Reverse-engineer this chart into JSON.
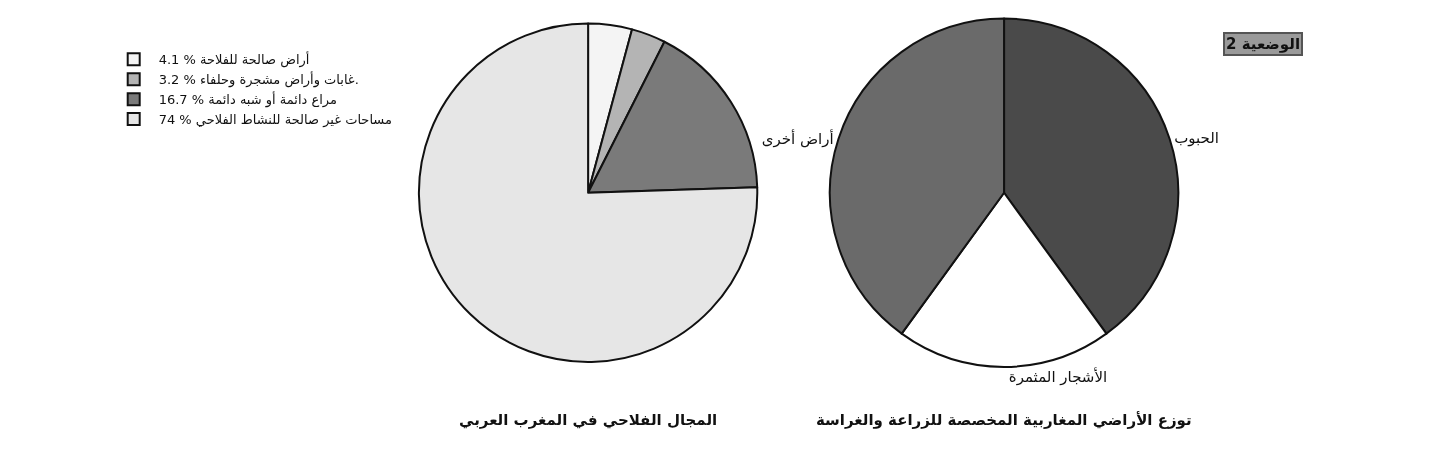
{
  "chart_data": [
    {
      "type": "pie",
      "title": "توزع الأراضي المغاربية المخصصة للزراعة والغراسة",
      "annotations": [
        "الوضعية 2"
      ],
      "categories": [
        "الحبوب",
        "الأشجار المثمرة",
        "أراض أخرى"
      ],
      "values": [
        40,
        20,
        40
      ],
      "colors": [
        "#4a4a4a",
        "#ffffff",
        "#6a6a6a"
      ],
      "legend": false
    },
    {
      "type": "pie",
      "title": "المجال الفلاحي في المغرب العربي",
      "categories": [
        "4.1 % أراض صالحة للفلاحة",
        "3.2 % غابات وأراض مشجرة وحلفاء.",
        "16.7 % مراع دائمة أو شبه دائمة",
        "74 % مساحات غير صالحة للنشاط الفلاحي"
      ],
      "values": [
        4.1,
        3.2,
        16.7,
        74
      ],
      "colors": [
        "#f4f4f4",
        "#b4b4b4",
        "#7a7a7a",
        "#e6e6e6"
      ],
      "legend": "left"
    }
  ]
}
